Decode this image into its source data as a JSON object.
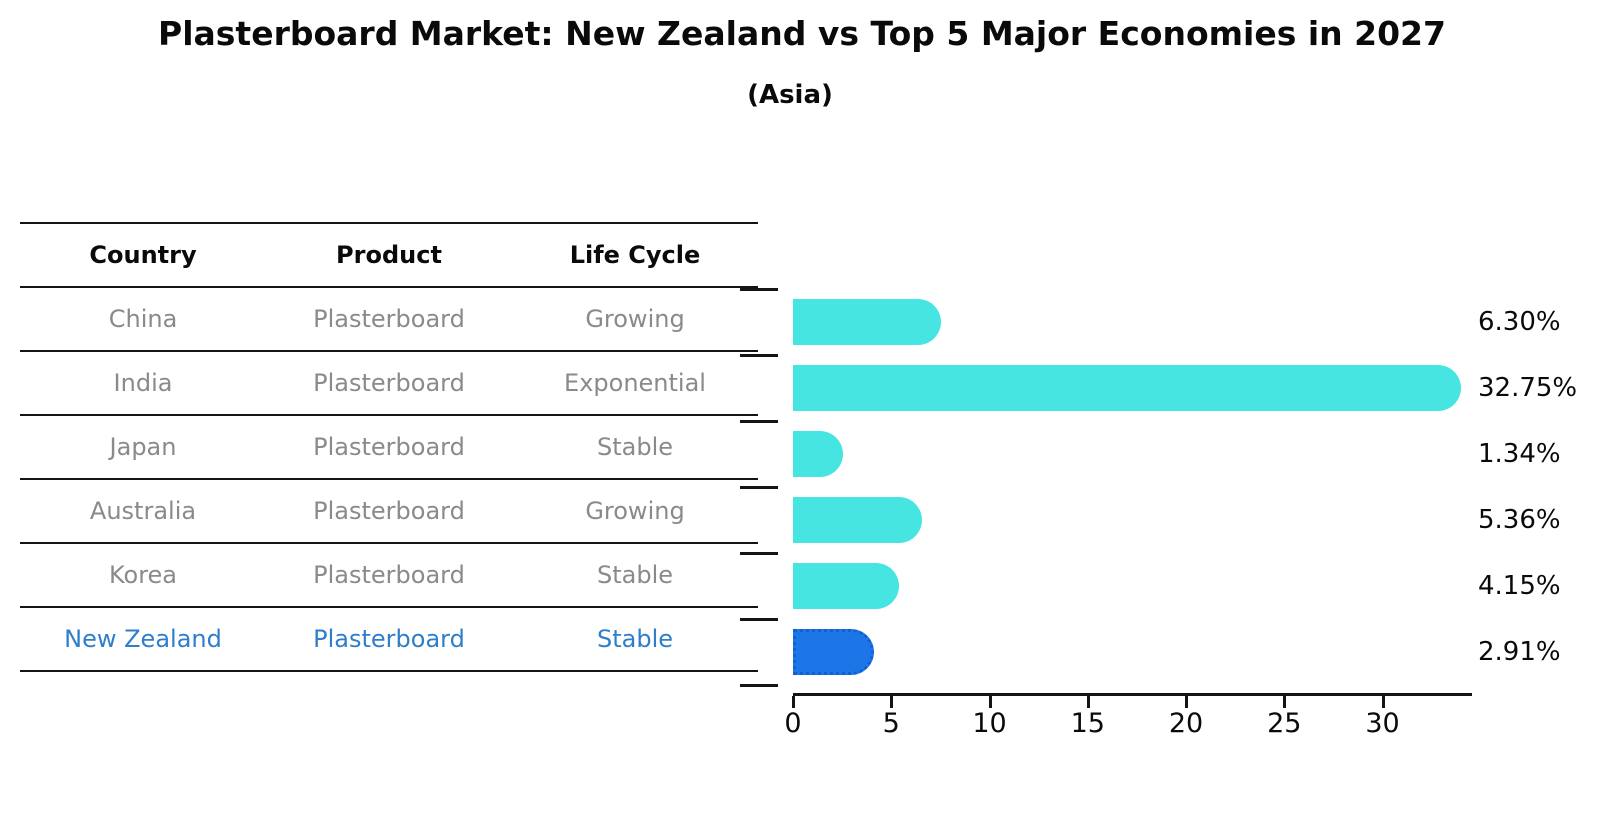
{
  "title": "Plasterboard Market: New Zealand vs Top 5 Major Economies in 2027",
  "subtitle": "(Asia)",
  "table": {
    "headers": [
      "Country",
      "Product",
      "Life Cycle"
    ],
    "rows": [
      {
        "country": "China",
        "product": "Plasterboard",
        "life_cycle": "Growing",
        "highlight": false
      },
      {
        "country": "India",
        "product": "Plasterboard",
        "life_cycle": "Exponential",
        "highlight": false
      },
      {
        "country": "Japan",
        "product": "Plasterboard",
        "life_cycle": "Stable",
        "highlight": false
      },
      {
        "country": "Australia",
        "product": "Plasterboard",
        "life_cycle": "Growing",
        "highlight": false
      },
      {
        "country": "Korea",
        "product": "Plasterboard",
        "life_cycle": "Stable",
        "highlight": false
      },
      {
        "country": "New Zealand",
        "product": "Plasterboard",
        "life_cycle": "Stable",
        "highlight": true
      }
    ]
  },
  "chart_data": {
    "type": "bar",
    "orientation": "horizontal",
    "title": "Plasterboard Market: New Zealand vs Top 5 Major Economies in 2027 (Asia)",
    "categories": [
      "China",
      "India",
      "Japan",
      "Australia",
      "Korea",
      "New Zealand"
    ],
    "values": [
      6.3,
      32.75,
      1.34,
      5.36,
      4.15,
      2.91
    ],
    "value_labels": [
      "6.30%",
      "32.75%",
      "1.34%",
      "5.36%",
      "4.15%",
      "2.91%"
    ],
    "xlabel": "",
    "ylabel": "",
    "xlim": [
      0,
      34.4
    ],
    "xticks": [
      0,
      5,
      10,
      15,
      20,
      25,
      30
    ],
    "grid": false,
    "legend": false,
    "bar_color": "#47e5e2",
    "highlight_color": "#1d76e8",
    "highlight_index": 5
  }
}
